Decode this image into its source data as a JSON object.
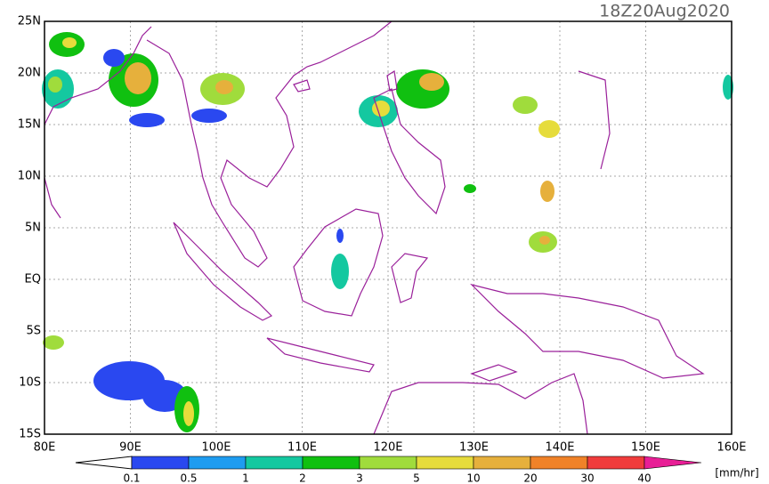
{
  "title": "18Z20Aug2020",
  "lat_labels": [
    "25N",
    "20N",
    "15N",
    "10N",
    "5N",
    "EQ",
    "5S",
    "10S",
    "15S"
  ],
  "lon_labels": [
    "80E",
    "90E",
    "100E",
    "110E",
    "120E",
    "130E",
    "140E",
    "150E",
    "160E"
  ],
  "colorbar": {
    "labels": [
      "0.1",
      "0.5",
      "1",
      "2",
      "3",
      "5",
      "10",
      "20",
      "30",
      "40"
    ],
    "colors": [
      "#2a48f0",
      "#1e9cf0",
      "#14c8a0",
      "#10c010",
      "#a0dc3c",
      "#e6dc3c",
      "#e6b03c",
      "#f08228",
      "#f03c3c",
      "#e81e96"
    ],
    "unit": "[mm/hr]"
  }
}
